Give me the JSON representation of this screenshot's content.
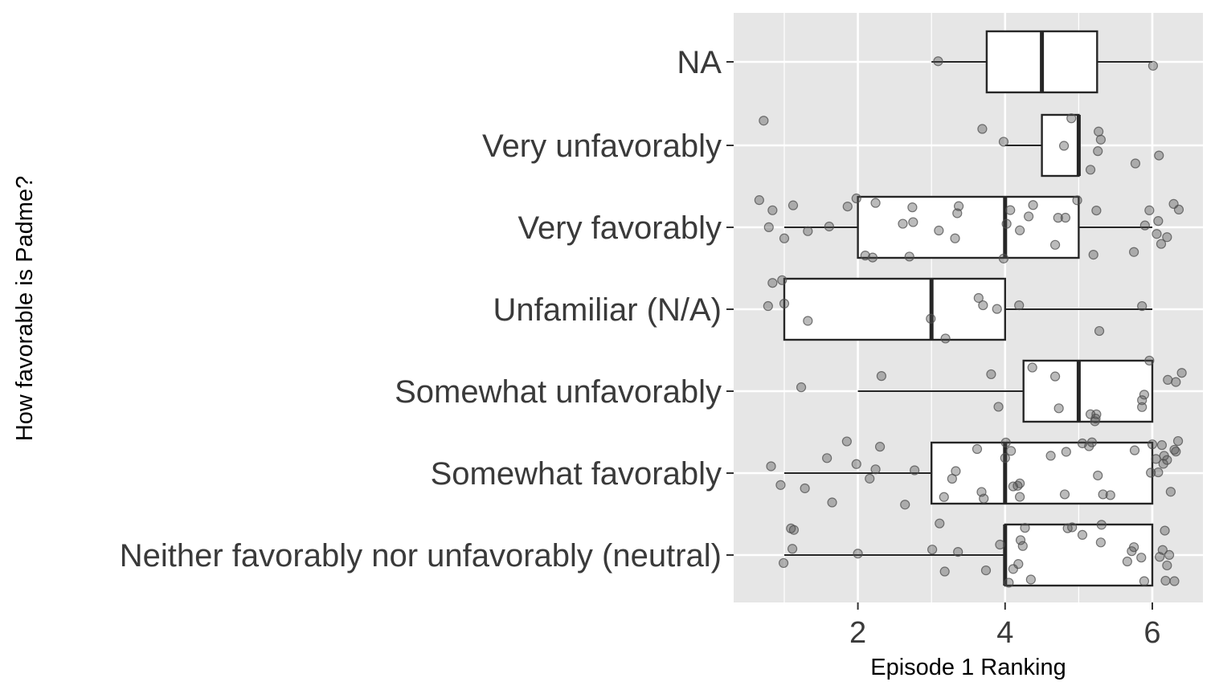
{
  "chart_data": {
    "type": "boxplot",
    "orientation": "horizontal",
    "xlabel": "Episode 1 Ranking",
    "ylabel": "How favorable is Padme?",
    "xlim": [
      0.6,
      6.7
    ],
    "x_ticks": [
      2,
      4,
      6
    ],
    "grid": true,
    "legend": "none",
    "colors": {
      "panel": "#e6e6e6",
      "grid": "#ffffff",
      "box_fill": "#ffffff",
      "box_stroke": "#262626",
      "point": "#4d4d4d",
      "text": "#3a3a3a"
    },
    "categories": [
      "NA",
      "Very unfavorably",
      "Very favorably",
      "Unfamiliar (N/A)",
      "Somewhat unfavorably",
      "Somewhat favorably",
      "Neither favorably nor unfavorably (neutral)"
    ],
    "boxes": [
      {
        "category": "NA",
        "min": 3,
        "q1": 3.75,
        "median": 4.5,
        "q3": 5.25,
        "max": 6
      },
      {
        "category": "Very unfavorably",
        "min": 4,
        "q1": 4.5,
        "median": 5,
        "q3": 5,
        "max": 5
      },
      {
        "category": "Very favorably",
        "min": 1,
        "q1": 2,
        "median": 4,
        "q3": 5,
        "max": 6
      },
      {
        "category": "Unfamiliar (N/A)",
        "min": 1,
        "q1": 1,
        "median": 3,
        "q3": 4,
        "max": 6
      },
      {
        "category": "Somewhat unfavorably",
        "min": 2,
        "q1": 4.25,
        "median": 5,
        "q3": 6,
        "max": 6
      },
      {
        "category": "Somewhat favorably",
        "min": 1,
        "q1": 3,
        "median": 4,
        "q3": 6,
        "max": 6
      },
      {
        "category": "Neither favorably nor unfavorably (neutral)",
        "min": 1,
        "q1": 4,
        "median": 4,
        "q3": 6,
        "max": 6
      }
    ],
    "points": [
      {
        "category": "NA",
        "x": [
          3.09,
          6.01
        ]
      },
      {
        "category": "Very unfavorably",
        "x": [
          0.72,
          3.69,
          3.98,
          4.8,
          4.9,
          5.16,
          5.26,
          5.3,
          5.27,
          5.77,
          6.09
        ]
      },
      {
        "category": "Very favorably",
        "x": [
          0.66,
          0.79,
          0.84,
          1.0,
          1.12,
          1.32,
          1.61,
          1.86,
          1.98,
          2.1,
          2.2,
          2.24,
          2.61,
          2.7,
          2.74,
          2.75,
          3.1,
          3.32,
          3.35,
          3.37,
          3.98,
          4.02,
          4.07,
          4.2,
          4.32,
          4.38,
          4.68,
          4.72,
          4.82,
          4.98,
          5.2,
          5.24,
          5.75,
          5.9,
          5.96,
          6.06,
          6.08,
          6.12,
          6.2,
          6.29,
          6.36
        ]
      },
      {
        "category": "Unfamiliar (N/A)",
        "x": [
          0.78,
          0.84,
          0.97,
          1.0,
          1.32,
          2.99,
          3.19,
          3.64,
          3.7,
          3.89,
          4.19,
          5.28,
          5.86
        ]
      },
      {
        "category": "Somewhat unfavorably",
        "x": [
          1.23,
          2.32,
          3.81,
          3.91,
          4.37,
          4.68,
          4.73,
          5.16,
          5.22,
          5.23,
          5.24,
          5.86,
          5.86,
          5.89,
          5.96,
          6.21,
          6.32,
          6.4
        ]
      },
      {
        "category": "Somewhat favorably",
        "x": [
          0.82,
          0.95,
          1.28,
          1.58,
          1.65,
          1.85,
          1.98,
          2.16,
          2.24,
          2.3,
          2.64,
          2.77,
          3.17,
          3.28,
          3.33,
          3.62,
          3.68,
          3.71,
          4.0,
          4.01,
          4.08,
          4.11,
          4.17,
          4.2,
          4.2,
          4.62,
          4.81,
          4.83,
          5.05,
          5.14,
          5.18,
          5.26,
          5.33,
          5.43,
          5.76,
          5.98,
          6.0,
          6.05,
          6.08,
          6.13,
          6.15,
          6.16,
          6.2,
          6.25,
          6.3,
          6.32,
          6.35
        ]
      },
      {
        "category": "Neither favorably nor unfavorably (neutral)",
        "x": [
          0.99,
          1.09,
          1.11,
          1.13,
          2.0,
          3.01,
          3.11,
          3.18,
          3.36,
          3.74,
          3.93,
          4.05,
          4.11,
          4.18,
          4.21,
          4.24,
          4.27,
          4.35,
          4.85,
          4.91,
          5.05,
          5.3,
          5.31,
          5.66,
          5.72,
          5.75,
          5.85,
          5.89,
          6.1,
          6.14,
          6.17,
          6.18,
          6.2,
          6.23,
          6.3
        ]
      }
    ]
  }
}
